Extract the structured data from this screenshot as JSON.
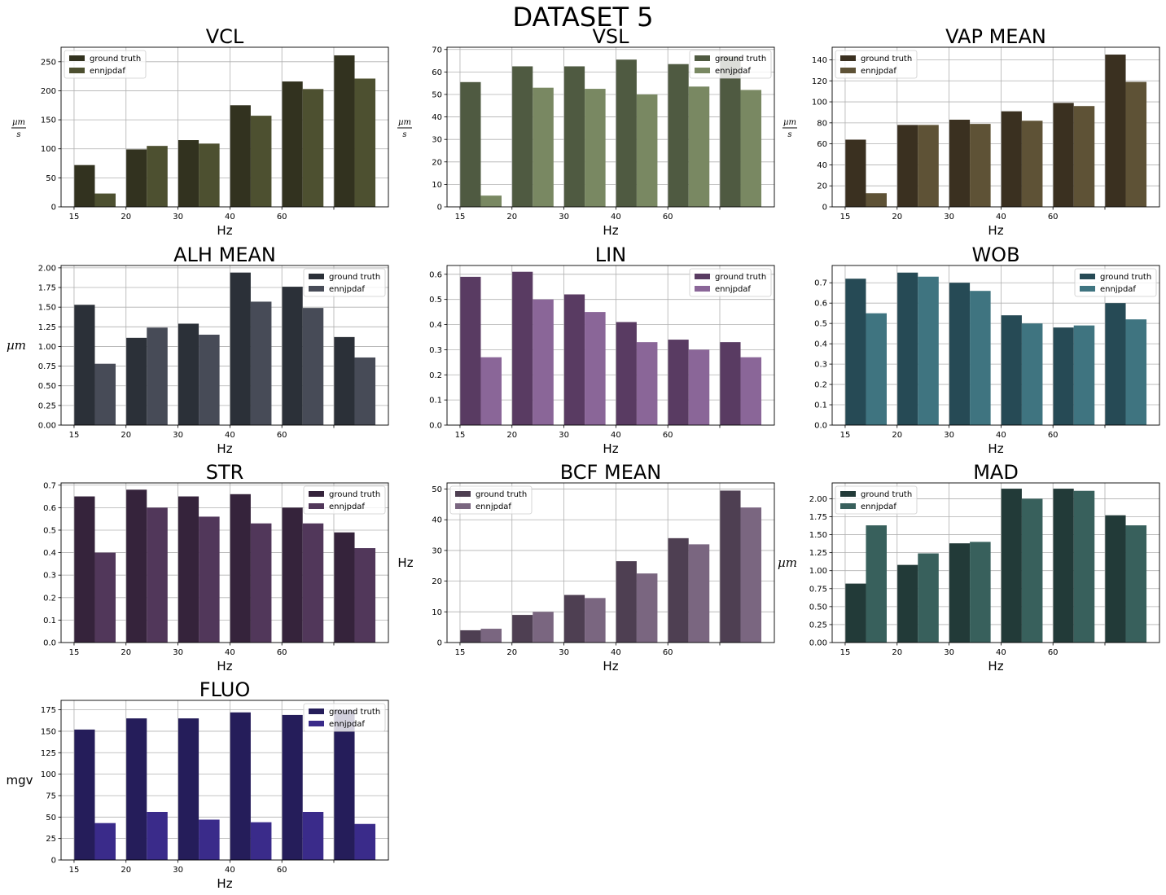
{
  "figure_title": "DATASET 5",
  "chart_data": [
    {
      "type": "bar",
      "title": "VCL",
      "xlabel": "Hz",
      "ylabel": "µm/s",
      "ylabel_style": "frac",
      "ylabel_num": "µm",
      "ylabel_den": "s",
      "xticklabels": [
        "15",
        "20",
        "30",
        "40",
        "60",
        ""
      ],
      "ylim": [
        0,
        275
      ],
      "yticks": [
        0,
        50,
        100,
        150,
        200,
        250
      ],
      "legend_position": "upper-left",
      "grid": true,
      "series": [
        {
          "name": "ground truth",
          "color": "#32321f",
          "values": [
            72,
            99,
            115,
            175,
            216,
            261
          ]
        },
        {
          "name": "ennjpdaf",
          "color": "#4d5030",
          "values": [
            23,
            105,
            109,
            157,
            203,
            221
          ]
        }
      ]
    },
    {
      "type": "bar",
      "title": "VSL",
      "xlabel": "Hz",
      "ylabel": "µm/s",
      "ylabel_style": "frac",
      "ylabel_num": "µm",
      "ylabel_den": "s",
      "xticklabels": [
        "15",
        "20",
        "30",
        "40",
        "60",
        ""
      ],
      "ylim": [
        0,
        71
      ],
      "yticks": [
        0,
        10,
        20,
        30,
        40,
        50,
        60,
        70
      ],
      "legend_position": "upper-right",
      "grid": true,
      "series": [
        {
          "name": "ground truth",
          "color": "#4f5a41",
          "values": [
            55.5,
            62.5,
            62.5,
            65.5,
            63.5,
            67
          ]
        },
        {
          "name": "ennjpdaf",
          "color": "#798862",
          "values": [
            5,
            53,
            52.5,
            50,
            53.5,
            52
          ]
        }
      ]
    },
    {
      "type": "bar",
      "title": "VAP MEAN",
      "xlabel": "Hz",
      "ylabel": "µm/s",
      "ylabel_style": "frac",
      "ylabel_num": "µm",
      "ylabel_den": "s",
      "xticklabels": [
        "15",
        "20",
        "30",
        "40",
        "60",
        ""
      ],
      "ylim": [
        0,
        152
      ],
      "yticks": [
        0,
        20,
        40,
        60,
        80,
        100,
        120,
        140
      ],
      "legend_position": "upper-left",
      "grid": true,
      "series": [
        {
          "name": "ground truth",
          "color": "#3a3020",
          "values": [
            64,
            78,
            83,
            91,
            99,
            145
          ]
        },
        {
          "name": "ennjpdaf",
          "color": "#5e5236",
          "values": [
            13,
            78,
            79,
            82,
            96,
            119
          ]
        }
      ]
    },
    {
      "type": "bar",
      "title": "ALH MEAN",
      "xlabel": "Hz",
      "ylabel": "µm",
      "ylabel_style": "italic",
      "xticklabels": [
        "15",
        "20",
        "30",
        "40",
        "60",
        ""
      ],
      "ylim": [
        0,
        2.03
      ],
      "yticks": [
        0.0,
        0.25,
        0.5,
        0.75,
        1.0,
        1.25,
        1.5,
        1.75,
        2.0
      ],
      "ytick_decimals": 2,
      "legend_position": "upper-right",
      "grid": true,
      "series": [
        {
          "name": "ground truth",
          "color": "#2b3038",
          "values": [
            1.53,
            1.11,
            1.29,
            1.94,
            1.76,
            1.12
          ]
        },
        {
          "name": "ennjpdaf",
          "color": "#474b57",
          "values": [
            0.78,
            1.24,
            1.15,
            1.57,
            1.49,
            0.86
          ]
        }
      ]
    },
    {
      "type": "bar",
      "title": "LIN",
      "xlabel": "Hz",
      "ylabel": "",
      "xticklabels": [
        "15",
        "20",
        "30",
        "40",
        "60",
        ""
      ],
      "ylim": [
        0,
        0.635
      ],
      "yticks": [
        0.0,
        0.1,
        0.2,
        0.3,
        0.4,
        0.5,
        0.6
      ],
      "ytick_decimals": 1,
      "legend_position": "upper-right",
      "grid": true,
      "series": [
        {
          "name": "ground truth",
          "color": "#593b62",
          "values": [
            0.59,
            0.61,
            0.52,
            0.41,
            0.34,
            0.33
          ]
        },
        {
          "name": "ennjpdaf",
          "color": "#8a6698",
          "values": [
            0.27,
            0.5,
            0.45,
            0.33,
            0.3,
            0.27
          ]
        }
      ]
    },
    {
      "type": "bar",
      "title": "WOB",
      "xlabel": "Hz",
      "ylabel": "",
      "xticklabels": [
        "15",
        "20",
        "30",
        "40",
        "60",
        ""
      ],
      "ylim": [
        0,
        0.785
      ],
      "yticks": [
        0.0,
        0.1,
        0.2,
        0.3,
        0.4,
        0.5,
        0.6,
        0.7
      ],
      "ytick_decimals": 1,
      "legend_position": "upper-right",
      "grid": true,
      "series": [
        {
          "name": "ground truth",
          "color": "#264a55",
          "values": [
            0.72,
            0.75,
            0.7,
            0.54,
            0.48,
            0.6
          ]
        },
        {
          "name": "ennjpdaf",
          "color": "#3f7480",
          "values": [
            0.55,
            0.73,
            0.66,
            0.5,
            0.49,
            0.52
          ]
        }
      ]
    },
    {
      "type": "bar",
      "title": "STR",
      "xlabel": "Hz",
      "ylabel": "",
      "xticklabels": [
        "15",
        "20",
        "30",
        "40",
        "60",
        ""
      ],
      "ylim": [
        0,
        0.71
      ],
      "yticks": [
        0.0,
        0.1,
        0.2,
        0.3,
        0.4,
        0.5,
        0.6,
        0.7
      ],
      "ytick_decimals": 1,
      "legend_position": "upper-right",
      "grid": true,
      "series": [
        {
          "name": "ground truth",
          "color": "#35233b",
          "values": [
            0.65,
            0.68,
            0.65,
            0.66,
            0.6,
            0.49
          ]
        },
        {
          "name": "ennjpdaf",
          "color": "#51375a",
          "values": [
            0.4,
            0.6,
            0.56,
            0.53,
            0.53,
            0.42
          ]
        }
      ]
    },
    {
      "type": "bar",
      "title": "BCF MEAN",
      "xlabel": "Hz",
      "ylabel": "Hz",
      "ylabel_style": "plain",
      "xticklabels": [
        "15",
        "20",
        "30",
        "40",
        "60",
        ""
      ],
      "ylim": [
        0,
        52
      ],
      "yticks": [
        0,
        10,
        20,
        30,
        40,
        50
      ],
      "legend_position": "upper-left",
      "grid": true,
      "series": [
        {
          "name": "ground truth",
          "color": "#4e3f52",
          "values": [
            4,
            9,
            15.5,
            26.5,
            34,
            49.5
          ]
        },
        {
          "name": "ennjpdaf",
          "color": "#7a6680",
          "values": [
            4.5,
            10,
            14.5,
            22.5,
            32,
            44
          ]
        }
      ]
    },
    {
      "type": "bar",
      "title": "MAD",
      "xlabel": "Hz",
      "ylabel": "µm",
      "ylabel_style": "italic",
      "xticklabels": [
        "15",
        "20",
        "30",
        "40",
        "60",
        ""
      ],
      "ylim": [
        0,
        2.22
      ],
      "yticks": [
        0.0,
        0.25,
        0.5,
        0.75,
        1.0,
        1.25,
        1.5,
        1.75,
        2.0
      ],
      "ytick_decimals": 2,
      "legend_position": "upper-left",
      "grid": true,
      "series": [
        {
          "name": "ground truth",
          "color": "#223a38",
          "values": [
            0.82,
            1.08,
            1.38,
            2.14,
            2.14,
            1.77
          ]
        },
        {
          "name": "ennjpdaf",
          "color": "#38605c",
          "values": [
            1.63,
            1.24,
            1.4,
            2.0,
            2.11,
            1.63
          ]
        }
      ]
    },
    {
      "type": "bar",
      "title": "FLUO",
      "xlabel": "Hz",
      "ylabel": "mgv",
      "ylabel_style": "plain",
      "xticklabels": [
        "15",
        "20",
        "30",
        "40",
        "60",
        ""
      ],
      "ylim": [
        0,
        186
      ],
      "yticks": [
        0,
        25,
        50,
        75,
        100,
        125,
        150,
        175
      ],
      "legend_position": "upper-right",
      "grid": true,
      "series": [
        {
          "name": "ground truth",
          "color": "#251d5a",
          "values": [
            152,
            165,
            165,
            172,
            169,
            175
          ]
        },
        {
          "name": "ennjpdaf",
          "color": "#3a2b8a",
          "values": [
            43,
            56,
            47,
            44,
            56,
            42
          ]
        }
      ]
    }
  ]
}
